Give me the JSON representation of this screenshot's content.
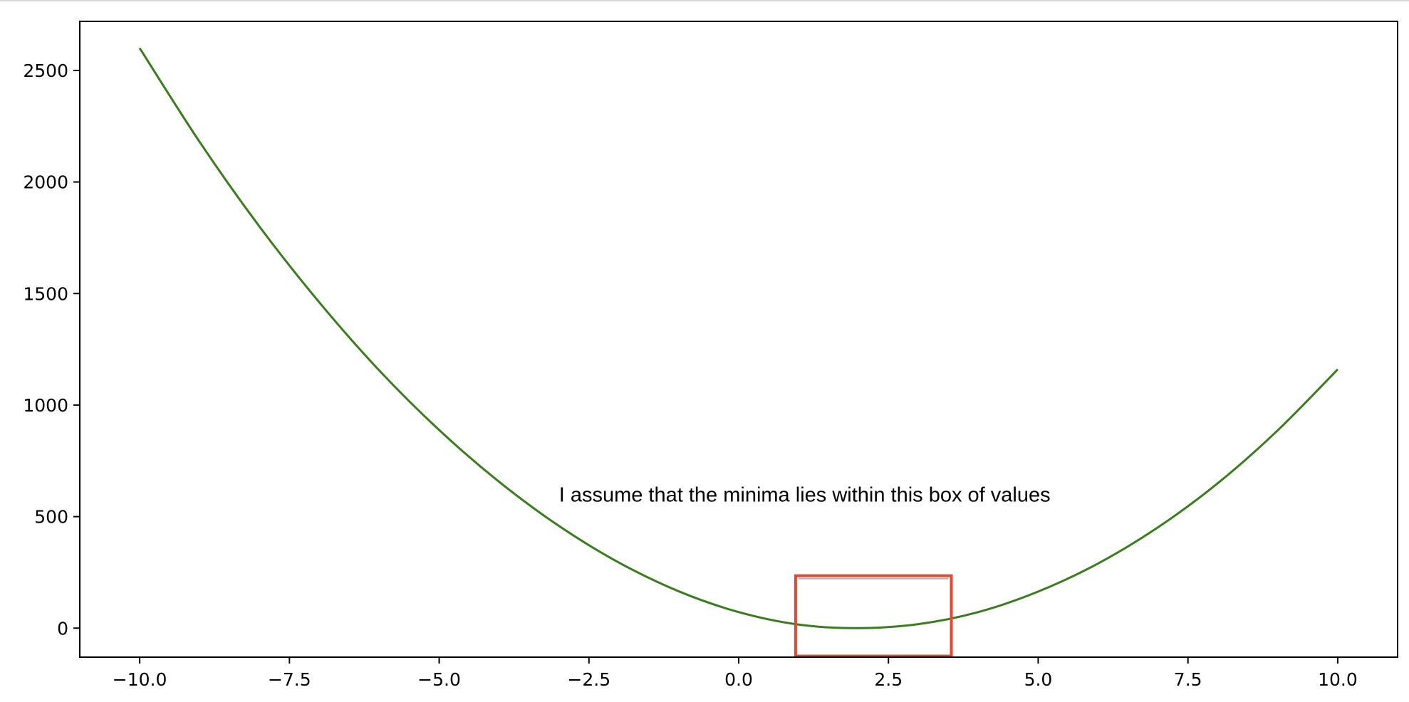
{
  "chart_data": {
    "type": "line",
    "title": "",
    "xlabel": "",
    "ylabel": "",
    "xlim": [
      -11.0,
      11.0
    ],
    "ylim": [
      -130,
      2720
    ],
    "x_ticks": [
      -10.0,
      -7.5,
      -5.0,
      -2.5,
      0.0,
      2.5,
      5.0,
      7.5,
      10.0
    ],
    "x_tick_labels": [
      "−10.0",
      "−7.5",
      "−5.0",
      "−2.5",
      "0.0",
      "2.5",
      "5.0",
      "7.5",
      "10.0"
    ],
    "y_ticks": [
      0,
      500,
      1000,
      1500,
      2000,
      2500
    ],
    "y_tick_labels": [
      "0",
      "500",
      "1000",
      "1500",
      "2000",
      "2500"
    ],
    "grid": false,
    "series": [
      {
        "color": "#3a7d1e",
        "x": [
          -10.0,
          -9.0,
          -8.0,
          -7.0,
          -6.0,
          -5.0,
          -4.0,
          -3.0,
          -2.0,
          -1.0,
          0.0,
          1.0,
          2.0,
          3.0,
          4.0,
          5.0,
          6.0,
          7.0,
          8.0,
          9.0,
          10.0
        ],
        "y": [
          2600,
          2180,
          1800,
          1460,
          1155,
          888,
          656,
          458,
          294,
          165,
          72,
          16,
          0,
          18,
          72,
          164,
          290,
          452,
          650,
          887,
          1160
        ]
      }
    ],
    "annotation": {
      "text": "I assume that the minima lies within this box of values",
      "x": -3.0,
      "y": 600,
      "box": {
        "x_range": [
          0.95,
          3.55
        ],
        "y_range": [
          -130,
          235
        ],
        "color": "#e04a35"
      }
    }
  }
}
